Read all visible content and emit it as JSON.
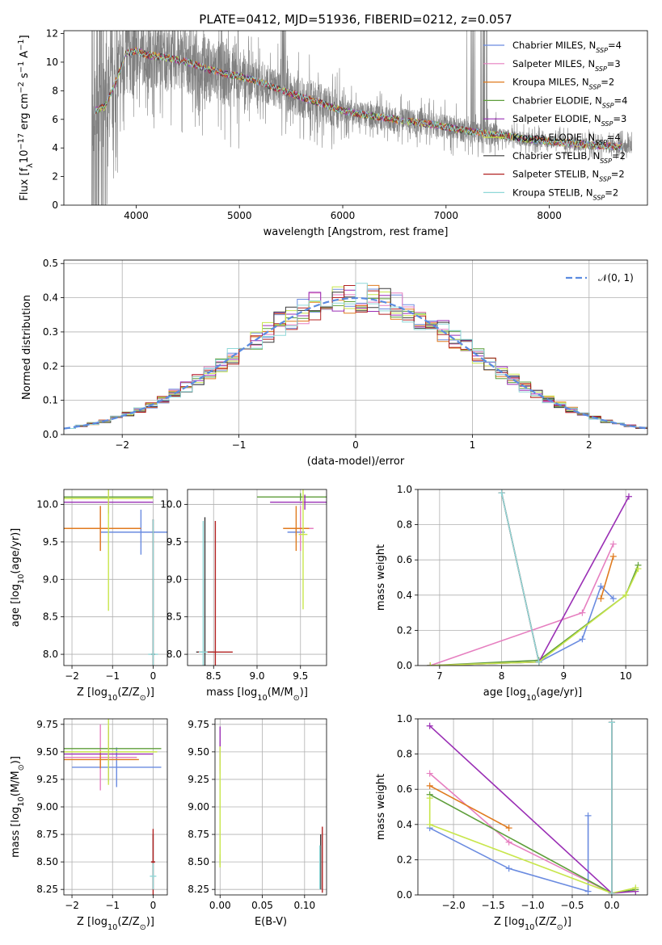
{
  "figure": {
    "title": "PLATE=0412, MJD=51936, FIBERID=0212, z=0.057"
  },
  "colors": {
    "data_spectrum": "#808080",
    "grid": "#b0b0b0",
    "normal_curve": "#5b8be0"
  },
  "legend_models": [
    {
      "name": "Chabrier MILES, N$_{SSP}$=4",
      "prefix": "Chabrier MILES, N",
      "sub": "SSP",
      "suffix": "=4",
      "color": "#6a8be0"
    },
    {
      "name": "Salpeter MILES, N$_{SSP}$=3",
      "prefix": "Salpeter MILES, N",
      "sub": "SSP",
      "suffix": "=3",
      "color": "#e67fc0"
    },
    {
      "name": "Kroupa MILES, N$_{SSP}$=2",
      "prefix": "Kroupa MILES, N",
      "sub": "SSP",
      "suffix": "=2",
      "color": "#e07a1e"
    },
    {
      "name": "Chabrier ELODIE, N$_{SSP}$=4",
      "prefix": "Chabrier ELODIE, N",
      "sub": "SSP",
      "suffix": "=4",
      "color": "#5e9e3a"
    },
    {
      "name": "Salpeter ELODIE, N$_{SSP}$=3",
      "prefix": "Salpeter ELODIE, N",
      "sub": "SSP",
      "suffix": "=3",
      "color": "#9a2fb5"
    },
    {
      "name": "Kroupa ELODIE, N$_{SSP}$=4",
      "prefix": "Kroupa ELODIE, N",
      "sub": "SSP",
      "suffix": "=4",
      "color": "#c8e64c"
    },
    {
      "name": "Chabrier STELIB, N$_{SSP}$=2",
      "prefix": "Chabrier STELIB, N",
      "sub": "SSP",
      "suffix": "=2",
      "color": "#3a3a3a"
    },
    {
      "name": "Salpeter STELIB, N$_{SSP}$=2",
      "prefix": "Salpeter STELIB, N",
      "sub": "SSP",
      "suffix": "=2",
      "color": "#b22222"
    },
    {
      "name": "Kroupa STELIB, N$_{SSP}$=2",
      "prefix": "Kroupa STELIB, N",
      "sub": "SSP",
      "suffix": "=2",
      "color": "#8fd8d8"
    }
  ],
  "chart_data": [
    {
      "id": "spectrum",
      "type": "line",
      "xlabel": "wavelength [Angstrom, rest frame]",
      "ylabel": "Flux [f$_\\lambda$10$^{-17}$ erg cm$^{-2}$ s$^{-1}$ A$^{-1}$]",
      "xlim": [
        3300,
        8950
      ],
      "ylim": [
        0,
        12.2
      ],
      "xticks": [
        4000,
        5000,
        6000,
        7000,
        8000
      ],
      "yticks": [
        0,
        2,
        4,
        6,
        8,
        10,
        12
      ],
      "grid": false,
      "legend": "top-right",
      "data_range": [
        3570,
        8800
      ],
      "model_curve": {
        "x": [
          3600,
          3700,
          3800,
          3900,
          4000,
          4100,
          4300,
          4500,
          4700,
          4850,
          5000,
          5200,
          5500,
          5800,
          6000,
          6300,
          6600,
          6900,
          7200,
          7500,
          7800,
          8100,
          8400,
          8700
        ],
        "y": [
          6.6,
          6.9,
          8.6,
          10.6,
          10.8,
          10.5,
          10.3,
          10.0,
          9.5,
          9.2,
          9.0,
          8.6,
          7.8,
          7.1,
          6.6,
          6.2,
          5.9,
          5.6,
          5.2,
          4.9,
          4.6,
          4.4,
          4.2,
          4.1
        ]
      }
    },
    {
      "id": "residuals",
      "type": "histogram",
      "xlabel": "(data-model)/error",
      "ylabel": "Normed distribution",
      "xlim": [
        -2.5,
        2.5
      ],
      "ylim": [
        0,
        0.51
      ],
      "xticks": [
        -2,
        -1,
        0,
        1,
        2
      ],
      "yticks": [
        0.0,
        0.1,
        0.2,
        0.3,
        0.4,
        0.5
      ],
      "xtick_labels": [
        "−2",
        "−1",
        "0",
        "1",
        "2"
      ],
      "ytick_labels": [
        "0.0",
        "0.1",
        "0.2",
        "0.3",
        "0.4",
        "0.5"
      ],
      "grid": true,
      "legend": "top-right",
      "normal_label": "𝒩(0, 1)",
      "bin_width": 0.1
    },
    {
      "id": "age-vs-Z",
      "type": "scatter",
      "xlabel": "Z [log$_{10}$(Z/Z$_\\odot$)]",
      "ylabel": "age  [log$_{10}$(age/yr)]",
      "xlim": [
        -2.2,
        0.35
      ],
      "ylim": [
        7.85,
        10.2
      ],
      "xticks": [
        -2,
        -1,
        0
      ],
      "yticks": [
        8.0,
        8.5,
        9.0,
        9.5,
        10.0
      ],
      "xtick_labels": [
        "−2",
        "−1",
        "0"
      ],
      "ytick_labels": [
        "8.0",
        "8.5",
        "9.0",
        "9.5",
        "10.0"
      ],
      "grid": true,
      "errorbars": [
        {
          "model": 0,
          "x": -0.3,
          "y": 9.63,
          "xerr": 1.0,
          "yerr": 0.3
        },
        {
          "model": 1,
          "x": -1.3,
          "y": 9.68,
          "xerr": 1.0,
          "yerr": 0.3
        },
        {
          "model": 2,
          "x": -1.3,
          "y": 9.68,
          "xerr": 1.0,
          "yerr": 0.3
        },
        {
          "model": 3,
          "x": -1.1,
          "y": 10.1,
          "xerr": 1.1,
          "yerr": 0.05
        },
        {
          "model": 4,
          "x": -1.1,
          "y": 10.03,
          "xerr": 1.1,
          "yerr": 0.15
        },
        {
          "model": 5,
          "x": -1.1,
          "y": 10.08,
          "xerr": 1.1,
          "yerr": 1.5
        },
        {
          "model": 6,
          "x": 0.0,
          "y": 8.0,
          "xerr": 0.05,
          "yerr": 1.8
        },
        {
          "model": 7,
          "x": 0.0,
          "y": 8.0,
          "xerr": 0.05,
          "yerr": 1.8
        },
        {
          "model": 8,
          "x": 0.0,
          "y": 8.0,
          "xerr": 0.12,
          "yerr": 1.8
        }
      ]
    },
    {
      "id": "age-vs-mass",
      "type": "scatter",
      "xlabel": "mass [log$_{10}$(M/M$_\\odot$)]",
      "ylabel": "",
      "xlim": [
        8.2,
        9.8
      ],
      "ylim": [
        7.85,
        10.2
      ],
      "xticks": [
        8.5,
        9.0,
        9.5
      ],
      "yticks": [
        8.0,
        8.5,
        9.0,
        9.5,
        10.0
      ],
      "xtick_labels": [
        "8.5",
        "9.0",
        "9.5"
      ],
      "ytick_labels": [
        "8.0",
        "8.5",
        "9.0",
        "9.5",
        "10.0"
      ],
      "grid": true,
      "errorbars": [
        {
          "model": 0,
          "x": 9.45,
          "y": 9.63,
          "xerr": 0.1,
          "yerr": 0.05
        },
        {
          "model": 1,
          "x": 9.5,
          "y": 9.68,
          "xerr": 0.15,
          "yerr": 0.3
        },
        {
          "model": 2,
          "x": 9.45,
          "y": 9.68,
          "xerr": 0.15,
          "yerr": 0.3
        },
        {
          "model": 3,
          "x": 9.5,
          "y": 10.1,
          "xerr": 0.5,
          "yerr": 0.05
        },
        {
          "model": 4,
          "x": 9.55,
          "y": 10.03,
          "xerr": 0.4,
          "yerr": 0.1
        },
        {
          "model": 5,
          "x": 9.53,
          "y": 9.6,
          "xerr": 0.05,
          "yerr": 1.0
        },
        {
          "model": 6,
          "x": 8.4,
          "y": 8.03,
          "xerr": 0.1,
          "yerr": 1.8
        },
        {
          "model": 7,
          "x": 8.52,
          "y": 8.03,
          "xerr": 0.2,
          "yerr": 1.75
        },
        {
          "model": 8,
          "x": 8.38,
          "y": 8.03,
          "xerr": 0.05,
          "yerr": 1.75
        }
      ]
    },
    {
      "id": "mass-weight-vs-age",
      "type": "line",
      "xlabel": "age  [log$_{10}$(age/yr)]",
      "ylabel": "mass weight",
      "xlim": [
        6.65,
        10.35
      ],
      "ylim": [
        0,
        1.0
      ],
      "xticks": [
        7,
        8,
        9,
        10
      ],
      "yticks": [
        0.0,
        0.2,
        0.4,
        0.6,
        0.8,
        1.0
      ],
      "xtick_labels": [
        "7",
        "8",
        "9",
        "10"
      ],
      "ytick_labels": [
        "0.0",
        "0.2",
        "0.4",
        "0.6",
        "0.8",
        "1.0"
      ],
      "grid": true,
      "series": [
        {
          "model": 0,
          "x": [
            6.85,
            8.6,
            9.3,
            9.6,
            9.8
          ],
          "y": [
            0.0,
            0.02,
            0.15,
            0.45,
            0.38
          ]
        },
        {
          "model": 1,
          "x": [
            6.85,
            9.3,
            9.8
          ],
          "y": [
            0.0,
            0.3,
            0.69
          ]
        },
        {
          "model": 2,
          "x": [
            9.6,
            9.8
          ],
          "y": [
            0.38,
            0.62
          ]
        },
        {
          "model": 3,
          "x": [
            6.85,
            8.6,
            10.0,
            10.2
          ],
          "y": [
            0.0,
            0.03,
            0.4,
            0.57
          ]
        },
        {
          "model": 4,
          "x": [
            6.85,
            8.6,
            10.05
          ],
          "y": [
            0.0,
            0.02,
            0.96
          ]
        },
        {
          "model": 5,
          "x": [
            6.85,
            8.6,
            10.0,
            10.2
          ],
          "y": [
            0.0,
            0.02,
            0.4,
            0.55
          ]
        },
        {
          "model": 6,
          "x": [
            8.0,
            8.6
          ],
          "y": [
            0.98,
            0.02
          ]
        },
        {
          "model": 7,
          "x": [
            8.0,
            8.6
          ],
          "y": [
            0.98,
            0.02
          ]
        },
        {
          "model": 8,
          "x": [
            8.0,
            8.6
          ],
          "y": [
            0.98,
            0.02
          ]
        }
      ]
    },
    {
      "id": "mass-vs-Z",
      "type": "scatter",
      "xlabel": "Z [log$_{10}$(Z/Z$_\\odot$)]",
      "ylabel": "mass [log$_{10}$(M/M$_\\odot$)]",
      "xlim": [
        -2.2,
        0.35
      ],
      "ylim": [
        8.2,
        9.8
      ],
      "xticks": [
        -2,
        -1,
        0
      ],
      "yticks": [
        8.25,
        8.5,
        8.75,
        9.0,
        9.25,
        9.5,
        9.75
      ],
      "xtick_labels": [
        "−2",
        "−1",
        "0"
      ],
      "ytick_labels": [
        "8.25",
        "8.50",
        "8.75",
        "9.00",
        "9.25",
        "9.50",
        "9.75"
      ],
      "grid": true,
      "errorbars": [
        {
          "model": 0,
          "x": -0.9,
          "y": 9.36,
          "xerr": 1.1,
          "yerr": 0.18
        },
        {
          "model": 1,
          "x": -1.3,
          "y": 9.45,
          "xerr": 0.9,
          "yerr": 0.3
        },
        {
          "model": 2,
          "x": -1.3,
          "y": 9.43,
          "xerr": 0.95,
          "yerr": 0.08
        },
        {
          "model": 3,
          "x": -1.1,
          "y": 9.53,
          "xerr": 1.3,
          "yerr": 0.07
        },
        {
          "model": 4,
          "x": -1.1,
          "y": 9.48,
          "xerr": 1.1,
          "yerr": 0.25
        },
        {
          "model": 5,
          "x": -1.1,
          "y": 9.5,
          "xerr": 1.2,
          "yerr": 0.3
        },
        {
          "model": 6,
          "x": 0.0,
          "y": 8.5,
          "xerr": 0.05,
          "yerr": 0.25
        },
        {
          "model": 7,
          "x": 0.0,
          "y": 8.5,
          "xerr": 0.05,
          "yerr": 0.3
        },
        {
          "model": 8,
          "x": 0.0,
          "y": 8.37,
          "xerr": 0.08,
          "yerr": 0.12
        }
      ]
    },
    {
      "id": "mass-vs-EBV",
      "type": "scatter",
      "xlabel": "E(B-V)",
      "ylabel": "",
      "xlim": [
        -0.006,
        0.126
      ],
      "ylim": [
        8.2,
        9.8
      ],
      "xticks": [
        0.0,
        0.05,
        0.1
      ],
      "yticks": [
        8.25,
        8.5,
        8.75,
        9.0,
        9.25,
        9.5,
        9.75
      ],
      "xtick_labels": [
        "0.00",
        "0.05",
        "0.10"
      ],
      "ytick_labels": [
        "8.25",
        "8.50",
        "8.75",
        "9.00",
        "9.25",
        "9.50",
        "9.75"
      ],
      "grid": true,
      "errorbars": [
        {
          "model": 0,
          "x": 0.0,
          "y": 9.4,
          "xerr": 0.0,
          "yerr": 0.1
        },
        {
          "model": 1,
          "x": 0.0,
          "y": 9.45,
          "xerr": 0.0,
          "yerr": 0.15
        },
        {
          "model": 2,
          "x": 0.0,
          "y": 9.43,
          "xerr": 0.0,
          "yerr": 0.1
        },
        {
          "model": 3,
          "x": 0.0,
          "y": 8.52,
          "xerr": 0.0,
          "yerr": 0.05
        },
        {
          "model": 4,
          "x": 0.0,
          "y": 9.55,
          "xerr": 0.0,
          "yerr": 0.18
        },
        {
          "model": 5,
          "x": 0.0,
          "y": 9.0,
          "xerr": 0.0,
          "yerr": 0.55
        },
        {
          "model": 6,
          "x": 0.119,
          "y": 8.5,
          "xerr": 0.0,
          "yerr": 0.25
        },
        {
          "model": 7,
          "x": 0.121,
          "y": 8.52,
          "xerr": 0.0,
          "yerr": 0.3
        },
        {
          "model": 8,
          "x": 0.118,
          "y": 8.45,
          "xerr": 0.0,
          "yerr": 0.2
        }
      ]
    },
    {
      "id": "mass-weight-vs-Z",
      "type": "line",
      "xlabel": "Z [log$_{10}$(Z/Z$_\\odot$)]",
      "ylabel": "mass weight",
      "xlim": [
        -2.45,
        0.45
      ],
      "ylim": [
        0,
        1.0
      ],
      "xticks": [
        -2.0,
        -1.5,
        -1.0,
        -0.5,
        0.0
      ],
      "yticks": [
        0.0,
        0.2,
        0.4,
        0.6,
        0.8,
        1.0
      ],
      "xtick_labels": [
        "−2.0",
        "−1.5",
        "−1.0",
        "−0.5",
        "0.0"
      ],
      "ytick_labels": [
        "0.0",
        "0.2",
        "0.4",
        "0.6",
        "0.8",
        "1.0"
      ],
      "grid": true,
      "series": [
        {
          "model": 0,
          "x": [
            -2.3,
            -1.3,
            -0.3,
            -0.3
          ],
          "y": [
            0.38,
            0.15,
            0.02,
            0.45
          ]
        },
        {
          "model": 1,
          "x": [
            -2.3,
            -1.3,
            0.0
          ],
          "y": [
            0.69,
            0.3,
            0.01
          ]
        },
        {
          "model": 2,
          "x": [
            -2.3,
            -1.3
          ],
          "y": [
            0.62,
            0.38
          ]
        },
        {
          "model": 3,
          "x": [
            -2.3,
            0.0,
            0.3
          ],
          "y": [
            0.57,
            0.01,
            0.03
          ]
        },
        {
          "model": 4,
          "x": [
            -2.3,
            0.0,
            0.3
          ],
          "y": [
            0.96,
            0.01,
            0.02
          ]
        },
        {
          "model": 5,
          "x": [
            -2.3,
            -2.3,
            0.0,
            0.3
          ],
          "y": [
            0.55,
            0.4,
            0.01,
            0.04
          ]
        },
        {
          "model": 6,
          "x": [
            0.0,
            0.0
          ],
          "y": [
            0.98,
            0.01
          ]
        },
        {
          "model": 7,
          "x": [
            0.0,
            0.0
          ],
          "y": [
            0.98,
            0.01
          ]
        },
        {
          "model": 8,
          "x": [
            0.0,
            0.0
          ],
          "y": [
            0.98,
            0.01
          ]
        }
      ]
    }
  ]
}
